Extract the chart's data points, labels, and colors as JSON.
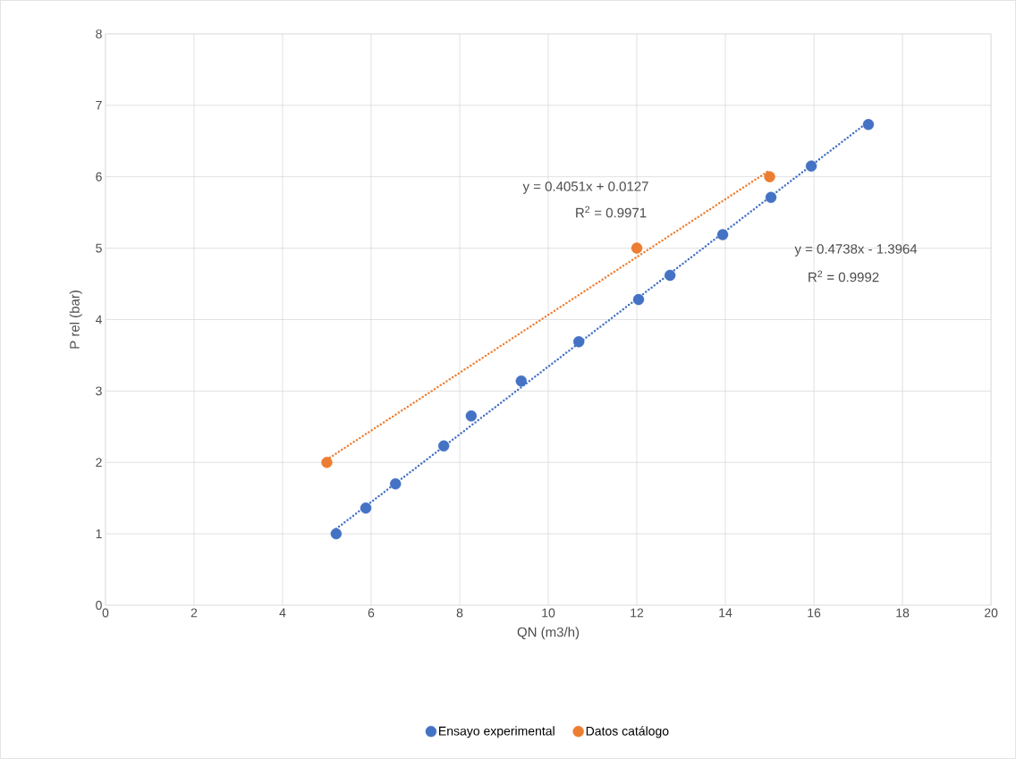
{
  "chart_data": {
    "type": "scatter",
    "xlabel": "QN (m3/h)",
    "ylabel": "P rel (bar)",
    "xlim": [
      0,
      20
    ],
    "ylim": [
      0,
      8
    ],
    "xticks": [
      0,
      2,
      4,
      6,
      8,
      10,
      12,
      14,
      16,
      18,
      20
    ],
    "yticks": [
      0,
      1,
      2,
      3,
      4,
      5,
      6,
      7,
      8
    ],
    "grid": true,
    "legend": "bottom",
    "series": [
      {
        "name": "Ensayo experimental",
        "color": "#4472c4",
        "marker": "circle",
        "x": [
          5.21,
          5.88,
          6.55,
          7.64,
          8.26,
          9.39,
          10.69,
          12.04,
          12.75,
          13.94,
          15.03,
          15.94,
          17.23
        ],
        "values": [
          1.0,
          1.36,
          1.7,
          2.23,
          2.65,
          3.14,
          3.69,
          4.28,
          4.62,
          5.19,
          5.71,
          6.15,
          6.73
        ]
      },
      {
        "name": "Datos catálogo",
        "color": "#ed7d31",
        "marker": "circle",
        "x": [
          5,
          12,
          15
        ],
        "values": [
          2,
          5,
          6
        ]
      },
      {
        "type": "line",
        "color": "#4472c4",
        "line_style": "dotted",
        "marker": "none",
        "x": [
          5.21,
          17.23
        ],
        "values": [
          1.07,
          6.77
        ]
      },
      {
        "type": "line",
        "color": "#ed7d31",
        "line_style": "dotted",
        "marker": "none",
        "x": [
          5,
          15
        ],
        "values": [
          2.04,
          6.09
        ]
      }
    ],
    "annotations": [
      "y = 0.4051x + 0.0127",
      "R$^{2}$ = 0.9971",
      "y = 0.4738x - 1.3964",
      "R$^{2}$ = 0.9992"
    ]
  }
}
